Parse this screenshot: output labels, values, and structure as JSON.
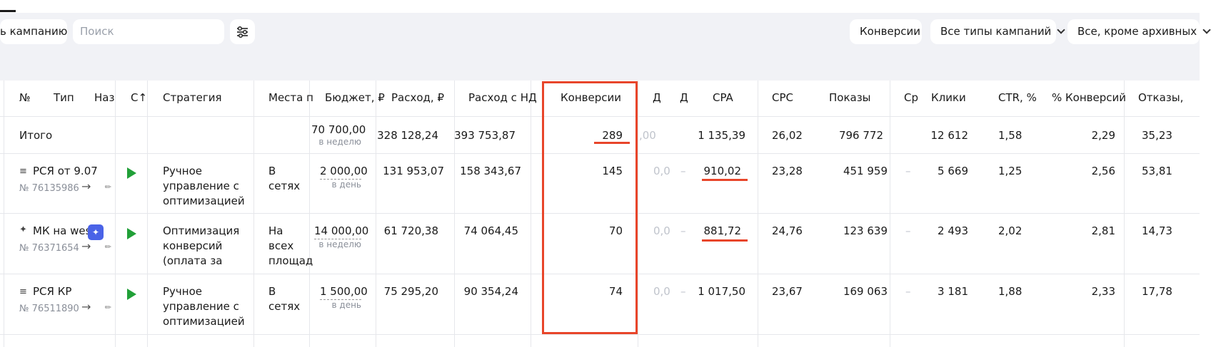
{
  "toolbar": {
    "add_campaign_label": "ь кампанию",
    "search_placeholder": "Поиск",
    "filter_icon": "sliders-icon",
    "conversions_label": "Конверсии",
    "campaign_types_label": "Все типы кампаний",
    "archive_filter_label": "Все, кроме архивных"
  },
  "columns": [
    "№",
    "Тип",
    "Наз",
    "С↑",
    "Стратегия",
    "Места п",
    "Бюджет, ₽",
    "Расход, ₽",
    "Расход с НД",
    "Конверсии",
    "Д",
    "Д",
    "CPA",
    "CPC",
    "Показы",
    "Ср",
    "Клики",
    "CTR, %",
    "% Конверсий",
    "Отказы,"
  ],
  "totals": {
    "label": "Итого",
    "budget": "70 700,00",
    "budget_period": "в неделю",
    "spend": "328 128,24",
    "spend_vat": "393 753,87",
    "conversions": "289",
    "d1": ",00",
    "cpa": "1 135,39",
    "cpc": "26,02",
    "impressions": "796 772",
    "clicks": "12 612",
    "ctr": "1,58",
    "conv_rate": "2,29",
    "bounces": "35,23"
  },
  "rows": [
    {
      "type_icon": "list-icon",
      "name": "РСЯ от 9.07",
      "id": "№ 76135986",
      "strategy": [
        "Ручное",
        "управление с",
        "оптимизацией"
      ],
      "places": [
        "В",
        "сетях"
      ],
      "budget": "2 000,00",
      "budget_period": "в день",
      "spend": "131 953,07",
      "spend_vat": "158 343,67",
      "conversions": "145",
      "d1": "0,0",
      "d2": "–",
      "cpa": "910,02",
      "cpc": "23,28",
      "impressions": "451 959",
      "avg": "–",
      "clicks": "5 669",
      "ctr": "1,25",
      "conv_rate": "2,56",
      "bounces": "53,81"
    },
    {
      "type_icon": "wand-icon",
      "name": "МК на west",
      "id": "№ 76371654",
      "strategy": [
        "Оптимизация",
        "конверсий",
        "(оплата за"
      ],
      "places": [
        "На",
        "всех",
        "площад"
      ],
      "budget": "14 000,00",
      "budget_period": "в неделю",
      "spend": "61 720,38",
      "spend_vat": "74 064,45",
      "conversions": "70",
      "d1": "0,0",
      "d2": "–",
      "cpa": "881,72",
      "cpc": "24,76",
      "impressions": "123 639",
      "avg": "–",
      "clicks": "2 493",
      "ctr": "2,02",
      "conv_rate": "2,81",
      "bounces": "14,73"
    },
    {
      "type_icon": "list-icon",
      "name": "РСЯ КР",
      "id": "№ 76511890",
      "strategy": [
        "Ручное",
        "управление с",
        "оптимизацией"
      ],
      "places": [
        "В",
        "сетях"
      ],
      "budget": "1 500,00",
      "budget_period": "в день",
      "spend": "75 295,20",
      "spend_vat": "90 354,24",
      "conversions": "74",
      "d1": "0,0",
      "d2": "–",
      "cpa": "1 017,50",
      "cpc": "23,67",
      "impressions": "169 063",
      "avg": "–",
      "clicks": "3 181",
      "ctr": "1,88",
      "conv_rate": "2,33",
      "bounces": "17,78"
    }
  ],
  "colors": {
    "highlight": "#e8452a",
    "play": "#21a038",
    "ai_badge": "#4a63e7"
  }
}
